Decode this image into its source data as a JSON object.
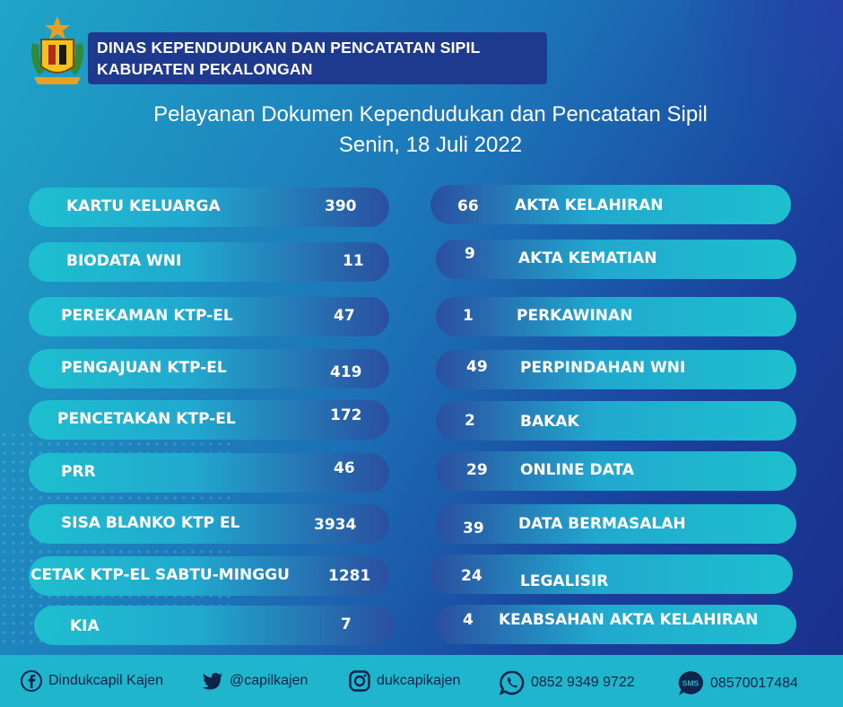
{
  "header": {
    "line1": "DINAS KEPENDUDUKAN DAN PENCATATAN SIPIL",
    "line2": "KABUPATEN PEKALONGAN"
  },
  "title": {
    "line1": "Pelayanan Dokumen Kependudukan dan Pencatatan Sipil",
    "line2": "Senin, 18 Juli 2022"
  },
  "left_items": [
    {
      "label": "KARTU KELUARGA",
      "value": "390"
    },
    {
      "label": "BIODATA WNI",
      "value": "11"
    },
    {
      "label": "PEREKAMAN KTP-EL",
      "value": "47"
    },
    {
      "label": "PENGAJUAN KTP-EL",
      "value": "419"
    },
    {
      "label": "PENCETAKAN KTP-EL",
      "value": "172"
    },
    {
      "label": "PRR",
      "value": "46"
    },
    {
      "label": "SISA BLANKO KTP EL",
      "value": "3934"
    },
    {
      "label": "CETAK KTP-EL SABTU-MINGGU",
      "value": "1281"
    },
    {
      "label": "KIA",
      "value": "7"
    }
  ],
  "right_items": [
    {
      "label": "AKTA KELAHIRAN",
      "value": "66"
    },
    {
      "label": "AKTA KEMATIAN",
      "value": "9"
    },
    {
      "label": "PERKAWINAN",
      "value": "1"
    },
    {
      "label": "PERPINDAHAN WNI",
      "value": "49"
    },
    {
      "label": "BAKAK",
      "value": "2"
    },
    {
      "label": "ONLINE DATA",
      "value": "29"
    },
    {
      "label": "DATA BERMASALAH",
      "value": "39"
    },
    {
      "label": "LEGALISIR",
      "value": "24"
    },
    {
      "label": "KEABSAHAN AKTA KELAHIRAN",
      "value": "4"
    }
  ],
  "footer": {
    "facebook": {
      "icon": "facebook-icon",
      "text": "Dindukcapil Kajen"
    },
    "twitter": {
      "icon": "twitter-icon",
      "text": "@capilkajen"
    },
    "instagram": {
      "icon": "instagram-icon",
      "text": "dukcapikajen"
    },
    "whatsapp": {
      "icon": "whatsapp-icon",
      "text": "0852 9349 9722"
    },
    "sms": {
      "icon": "sms-icon",
      "text": "08570017484"
    }
  },
  "colors": {
    "header_box": "#1e3a8f",
    "footer": "#1fb6cd",
    "pill_light": "#1ebfcf",
    "pill_dark": "#2a4fa0"
  }
}
